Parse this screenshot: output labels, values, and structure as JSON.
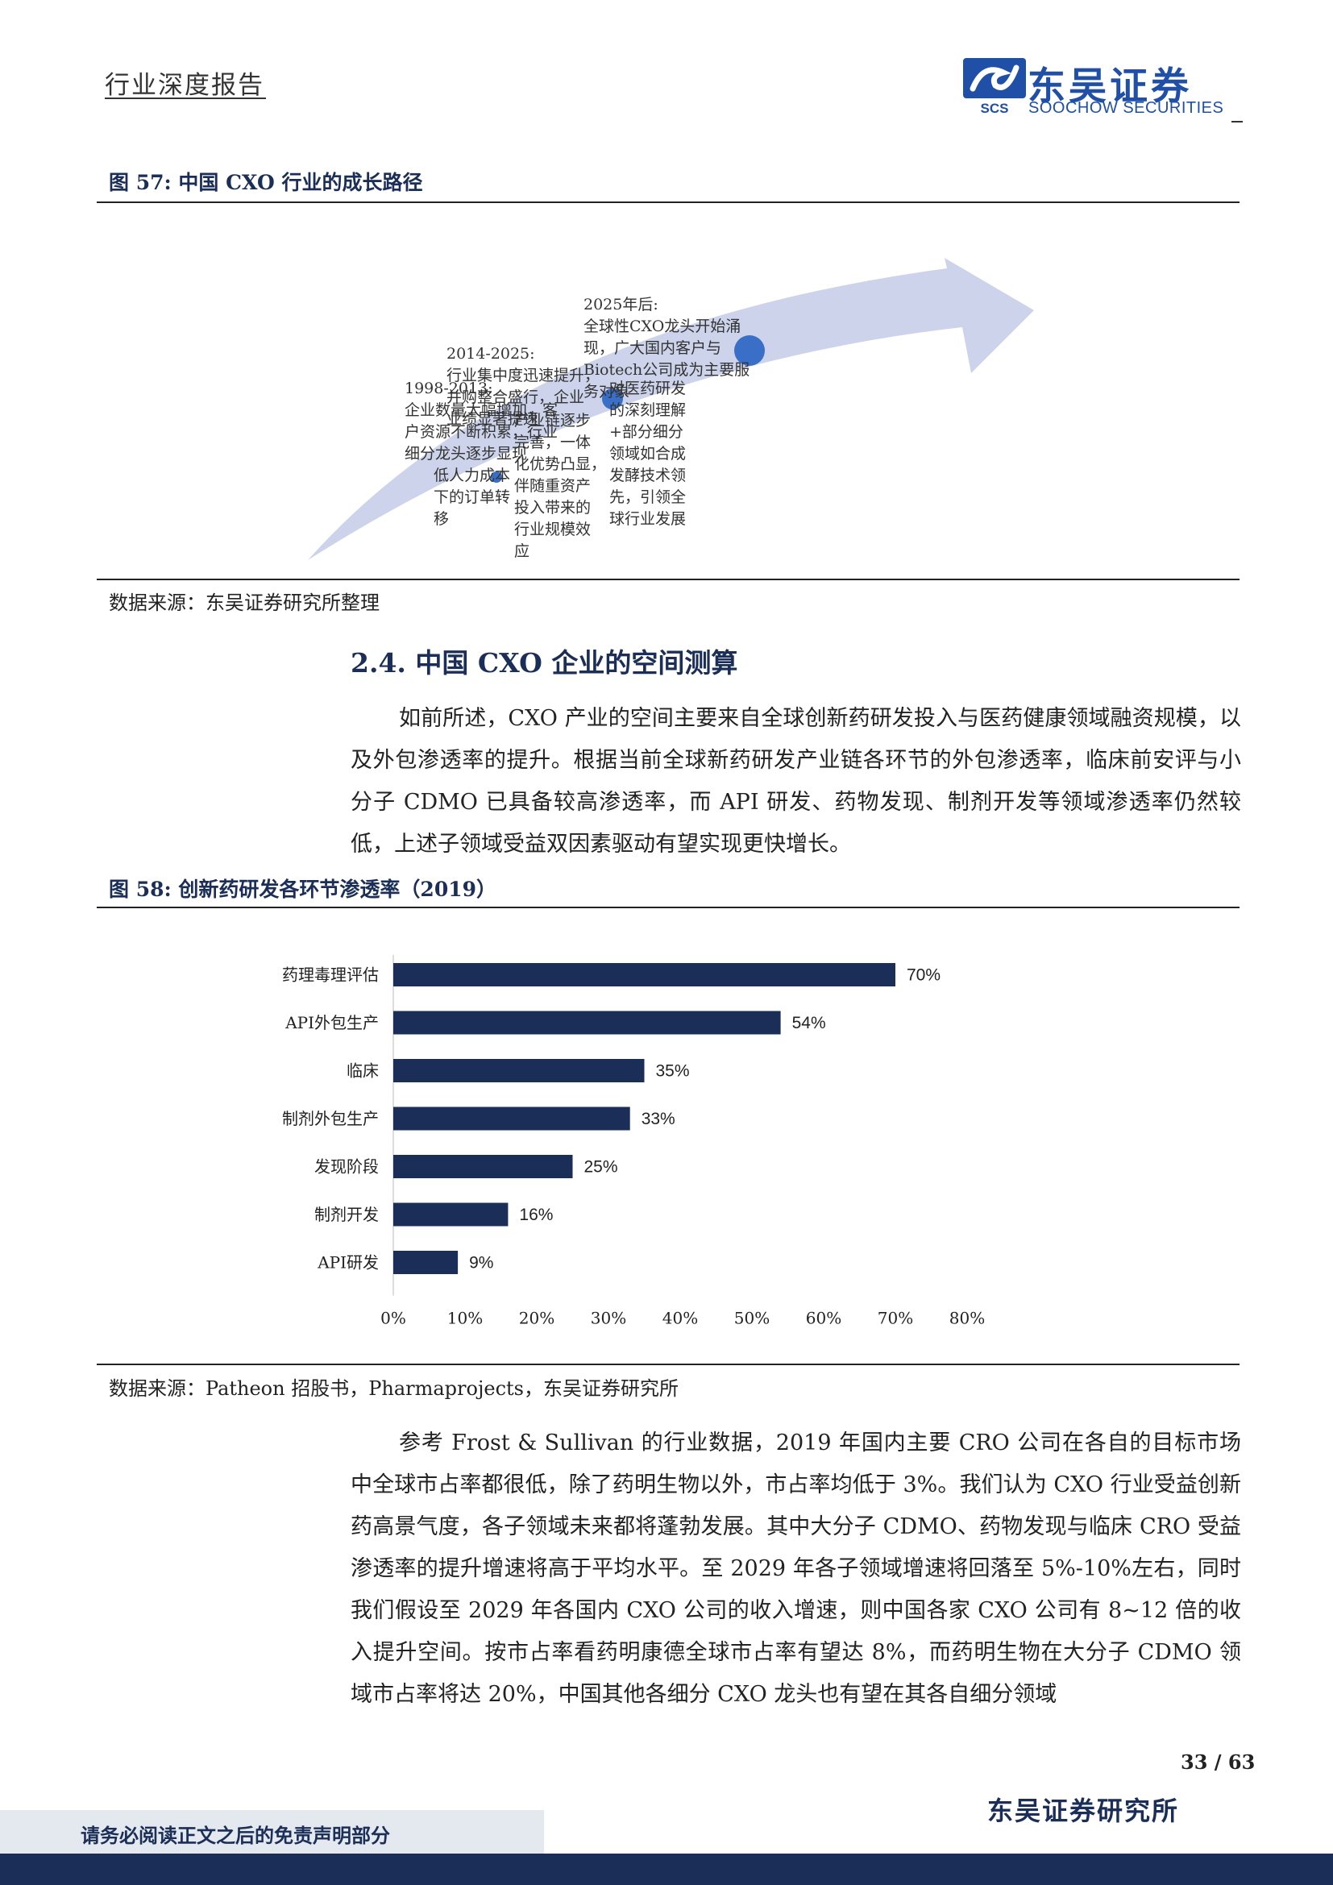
{
  "header": {
    "report_type": "行业深度报告",
    "brand_cn": "东吴证券",
    "brand_en": "SOOCHOW SECURITIES",
    "brand_mark": "SCS"
  },
  "figure57": {
    "title": "图 57:  中国 CXO 行业的成长路径",
    "source": "数据来源：东吴证券研究所整理",
    "stages": [
      {
        "period": "1998-2013:",
        "lines": [
          "企业数量大幅增加，客",
          "户资源不断积累，行业",
          "细分龙头逐步显现"
        ]
      },
      {
        "period": "2014-2025:",
        "lines": [
          "行业集中度迅速提升，",
          "并购整合盛行，企业",
          "业绩显著提速"
        ]
      },
      {
        "period": "2025年后:",
        "lines": [
          "全球性CXO龙头开始涌",
          "现，广大国内客户与",
          "Biotech公司成为主要服",
          "务对象"
        ]
      }
    ],
    "drivers": [
      [
        "低人力成本",
        "下的订单转",
        "移"
      ],
      [
        "产业链逐步",
        "完善，一体",
        "化优势凸显，",
        "伴随重资产",
        "投入带来的",
        "行业规模效",
        "应"
      ],
      [
        "对医药研发",
        "的深刻理解",
        "+部分细分",
        "领域如合成",
        "发酵技术领",
        "先，引领全",
        "球行业发展"
      ]
    ],
    "arrow_color": "#ccd3ea",
    "dot_color": "#3a6fc7"
  },
  "section": {
    "title": "2.4.  中国 CXO 企业的空间测算",
    "para1": "如前所述，CXO 产业的空间主要来自全球创新药研发投入与医药健康领域融资规模，以及外包渗透率的提升。根据当前全球新药研发产业链各环节的外包渗透率，临床前安评与小分子 CDMO 已具备较高渗透率，而 API 研发、药物发现、制剂开发等领域渗透率仍然较低，上述子领域受益双因素驱动有望实现更快增长。"
  },
  "figure58": {
    "title": "图 58:  创新药研发各环节渗透率（2019）",
    "source": "数据来源：Patheon 招股书，Pharmaprojects，东吴证券研究所"
  },
  "chart_data": {
    "type": "bar",
    "orientation": "horizontal",
    "categories": [
      "药理毒理评估",
      "API外包生产",
      "临床",
      "制剂外包生产",
      "发现阶段",
      "制剂开发",
      "API研发"
    ],
    "values": [
      70,
      54,
      35,
      33,
      25,
      16,
      9
    ],
    "value_labels": [
      "70%",
      "54%",
      "35%",
      "33%",
      "25%",
      "16%",
      "9%"
    ],
    "xlim": [
      0,
      80
    ],
    "xticks": [
      "0%",
      "10%",
      "20%",
      "30%",
      "40%",
      "50%",
      "60%",
      "70%",
      "80%"
    ],
    "bar_color": "#1b2e57",
    "grid": false,
    "legend": "none"
  },
  "para2": "参考 Frost & Sullivan 的行业数据，2019 年国内主要 CRO 公司在各自的目标市场中全球市占率都很低，除了药明生物以外，市占率均低于 3%。我们认为 CXO 行业受益创新药高景气度，各子领域未来都将蓬勃发展。其中大分子 CDMO、药物发现与临床 CRO 受益渗透率的提升增速将高于平均水平。至 2029 年各子领域增速将回落至 5%-10%左右，同时我们假设至 2029 年各国内 CXO 公司的收入增速，则中国各家 CXO 公司有 8~12 倍的收入提升空间。按市占率看药明康德全球市占率有望达 8%，而药明生物在大分子 CDMO 领域市占率将达 20%，中国其他各细分 CXO 龙头也有望在其各自细分领域",
  "footer": {
    "page": "33 / 63",
    "brand": "东吴证券研究所",
    "disclaimer": "请务必阅读正文之后的免责声明部分"
  }
}
